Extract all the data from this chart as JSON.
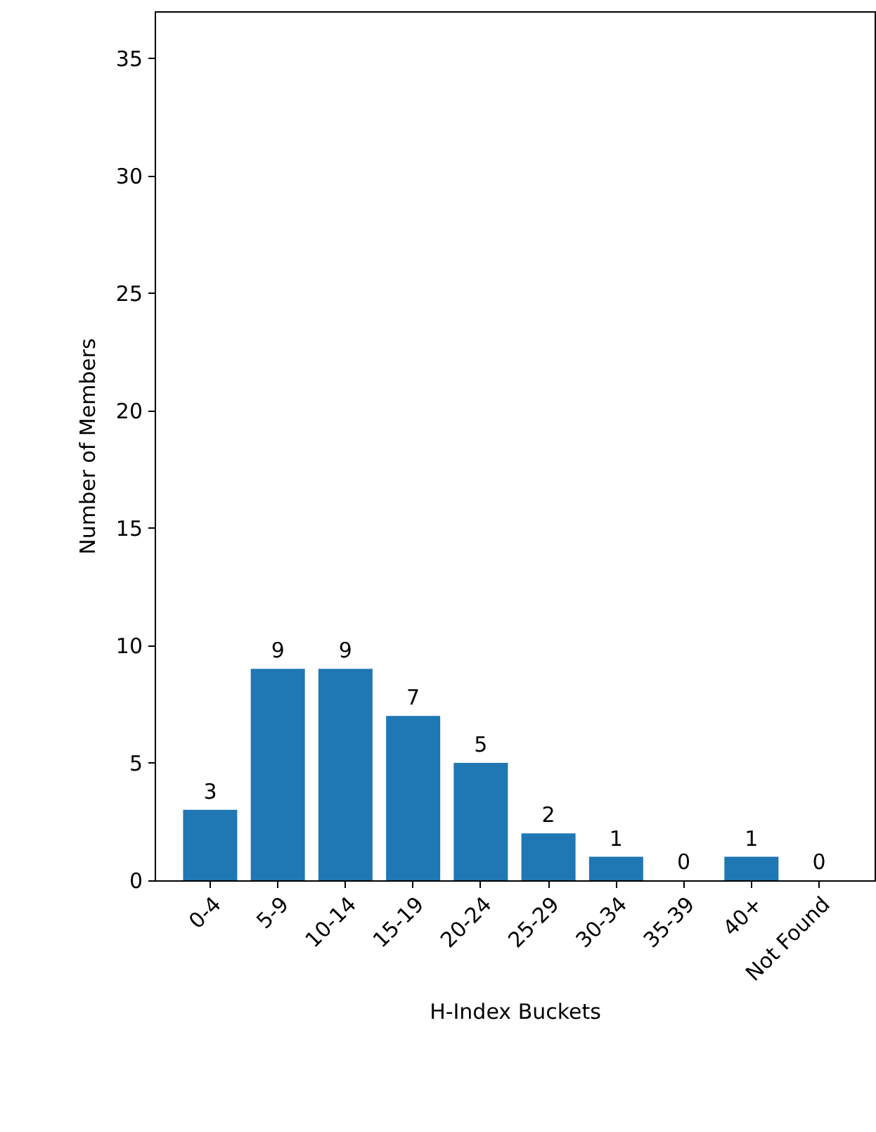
{
  "chart_data": {
    "type": "bar",
    "xlabel": "H-Index Buckets",
    "ylabel": "Number of Members",
    "categories": [
      "0-4",
      "5-9",
      "10-14",
      "15-19",
      "20-24",
      "25-29",
      "30-34",
      "35-39",
      "40+",
      "Not Found"
    ],
    "values": [
      3,
      9,
      9,
      7,
      5,
      2,
      1,
      0,
      1,
      0
    ],
    "color": "#1f77b4",
    "ylim": [
      0,
      37
    ],
    "yticks": [
      0,
      5,
      10,
      15,
      20,
      25,
      30,
      35
    ],
    "grid": false,
    "data_labels": true
  }
}
